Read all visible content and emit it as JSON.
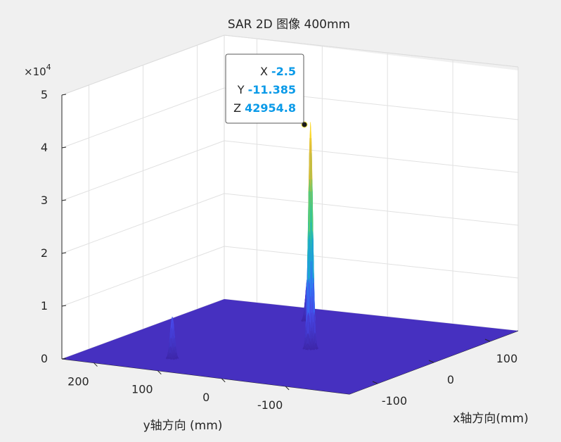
{
  "window": {
    "background": "#f0f0f0"
  },
  "chart_data": {
    "type": "surface",
    "title": "SAR 2D 图像 400mm",
    "xlabel": "x轴方向(mm)",
    "ylabel": "y轴方向 (mm)",
    "zlabel": "",
    "z_exponent_label": "×10",
    "z_exponent_value": "4",
    "x_ticks": [
      "-100",
      "0",
      "100"
    ],
    "y_ticks": [
      "200",
      "100",
      "0",
      "-100"
    ],
    "z_ticks": [
      "0",
      "1",
      "2",
      "3",
      "4",
      "5"
    ],
    "xlim": [
      -150,
      150
    ],
    "ylim": [
      -200,
      250
    ],
    "zlim": [
      0,
      50000
    ],
    "grid": true,
    "colormap": "parula",
    "colors": {
      "low": "#3e26a8",
      "mid": "#13beb8",
      "high": "#f9fb15",
      "floor": "#4630c0"
    },
    "peaks": [
      {
        "x": -2.5,
        "y": -11.385,
        "z": 42954.8
      },
      {
        "x": -100,
        "y": 120,
        "z": 8000
      },
      {
        "x": 100,
        "y": 80,
        "z": 8600
      }
    ],
    "datatip": {
      "x_label": "X",
      "x_value": "-2.5",
      "y_label": "Y",
      "y_value": "-11.385",
      "z_label": "Z",
      "z_value": "42954.8"
    }
  }
}
